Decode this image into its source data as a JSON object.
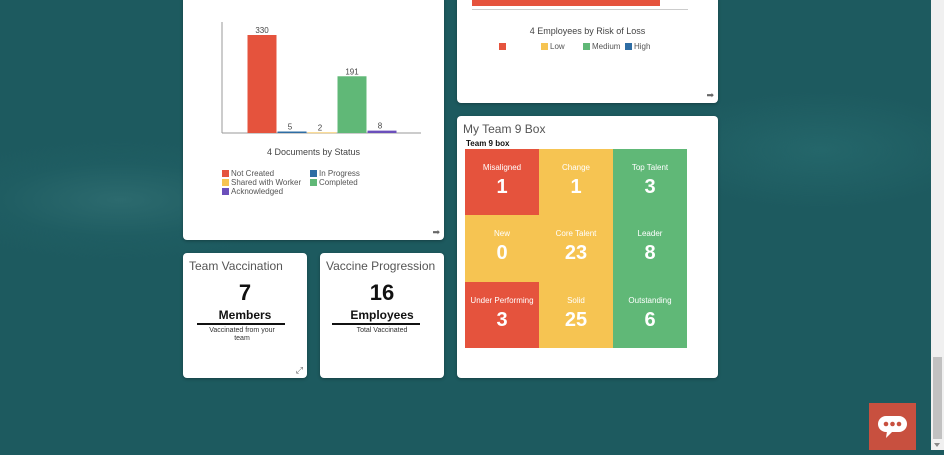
{
  "colors": {
    "red": "#e5533d",
    "blue": "#2e6da4",
    "yellow": "#f6c452",
    "green": "#60b877",
    "purple": "#6b4fbb",
    "bg": "#1d5a5f",
    "chat": "#c8503f"
  },
  "chart_data": [
    {
      "type": "bar",
      "title": "Documents by Status",
      "title_prefix": "4",
      "categories": [
        "Not Created",
        "In Progress",
        "Shared with Worker",
        "Completed",
        "Acknowledged"
      ],
      "values": [
        330,
        5,
        2,
        191,
        8
      ],
      "value_labels": [
        "330",
        "5",
        "2",
        "191",
        "8"
      ],
      "colors": [
        "#e5533d",
        "#2e6da4",
        "#f6c452",
        "#60b877",
        "#6b4fbb"
      ],
      "ylim": [
        0,
        330
      ],
      "legend": "bottom"
    },
    {
      "type": "bar",
      "title": "Employees by Risk of Loss",
      "title_prefix": "4",
      "legend_entries": [
        "",
        "Low",
        "Medium",
        "High"
      ],
      "legend_colors": [
        "#e5533d",
        "#f6c452",
        "#60b877",
        "#2e6da4"
      ],
      "legend": "bottom"
    }
  ],
  "nine_box": {
    "card_title": "My Team 9 Box",
    "subtitle": "Team 9 box",
    "cells": [
      {
        "label": "Misaligned",
        "value": "1",
        "color": "#e5533d"
      },
      {
        "label": "Change",
        "value": "1",
        "color": "#f6c452"
      },
      {
        "label": "Top Talent",
        "value": "3",
        "color": "#60b877"
      },
      {
        "label": "New",
        "value": "0",
        "color": "#f6c452"
      },
      {
        "label": "Core Talent",
        "value": "23",
        "color": "#f6c452"
      },
      {
        "label": "Leader",
        "value": "8",
        "color": "#60b877"
      },
      {
        "label": "Under Performing",
        "value": "3",
        "color": "#e5533d"
      },
      {
        "label": "Solid",
        "value": "25",
        "color": "#f6c452"
      },
      {
        "label": "Outstanding",
        "value": "6",
        "color": "#60b877"
      }
    ]
  },
  "team_vaccination": {
    "title": "Team Vaccination",
    "value": "7",
    "unit": "Members",
    "caption": "Vaccinated from your team"
  },
  "vaccine_progression": {
    "title": "Vaccine Progression",
    "value": "16",
    "unit": "Employees",
    "caption": "Total Vaccinated"
  }
}
